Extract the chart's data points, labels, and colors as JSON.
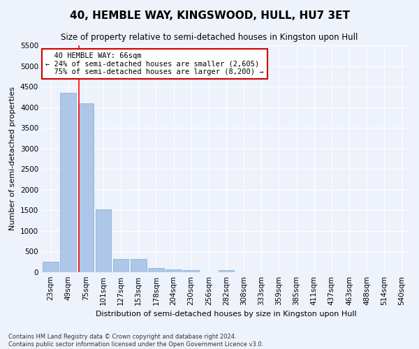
{
  "title": "40, HEMBLE WAY, KINGSWOOD, HULL, HU7 3ET",
  "subtitle": "Size of property relative to semi-detached houses in Kingston upon Hull",
  "xlabel": "Distribution of semi-detached houses by size in Kingston upon Hull",
  "ylabel": "Number of semi-detached properties",
  "footer1": "Contains HM Land Registry data © Crown copyright and database right 2024.",
  "footer2": "Contains public sector information licensed under the Open Government Licence v3.0.",
  "categories": [
    "23sqm",
    "49sqm",
    "75sqm",
    "101sqm",
    "127sqm",
    "153sqm",
    "178sqm",
    "204sqm",
    "230sqm",
    "256sqm",
    "282sqm",
    "308sqm",
    "333sqm",
    "359sqm",
    "385sqm",
    "411sqm",
    "437sqm",
    "463sqm",
    "488sqm",
    "514sqm",
    "540sqm"
  ],
  "values": [
    250,
    4350,
    4100,
    1530,
    320,
    315,
    105,
    75,
    55,
    0,
    55,
    0,
    0,
    0,
    0,
    0,
    0,
    0,
    0,
    0,
    0
  ],
  "bar_color": "#aec6e8",
  "bar_edge_color": "#7bafd4",
  "ylim": [
    0,
    5500
  ],
  "yticks": [
    0,
    500,
    1000,
    1500,
    2000,
    2500,
    3000,
    3500,
    4000,
    4500,
    5000,
    5500
  ],
  "property_label": "40 HEMBLE WAY: 66sqm",
  "pct_smaller": 24,
  "pct_smaller_count": "2,605",
  "pct_larger": 75,
  "pct_larger_count": "8,200",
  "red_line_x": 1.62,
  "box_color": "#ffffff",
  "box_edge_color": "#cc0000",
  "background_color": "#eef2fb",
  "grid_color": "#ffffff",
  "title_fontsize": 11,
  "subtitle_fontsize": 8.5,
  "axis_label_fontsize": 8,
  "tick_fontsize": 7.5,
  "annotation_fontsize": 7.5,
  "footer_fontsize": 6
}
